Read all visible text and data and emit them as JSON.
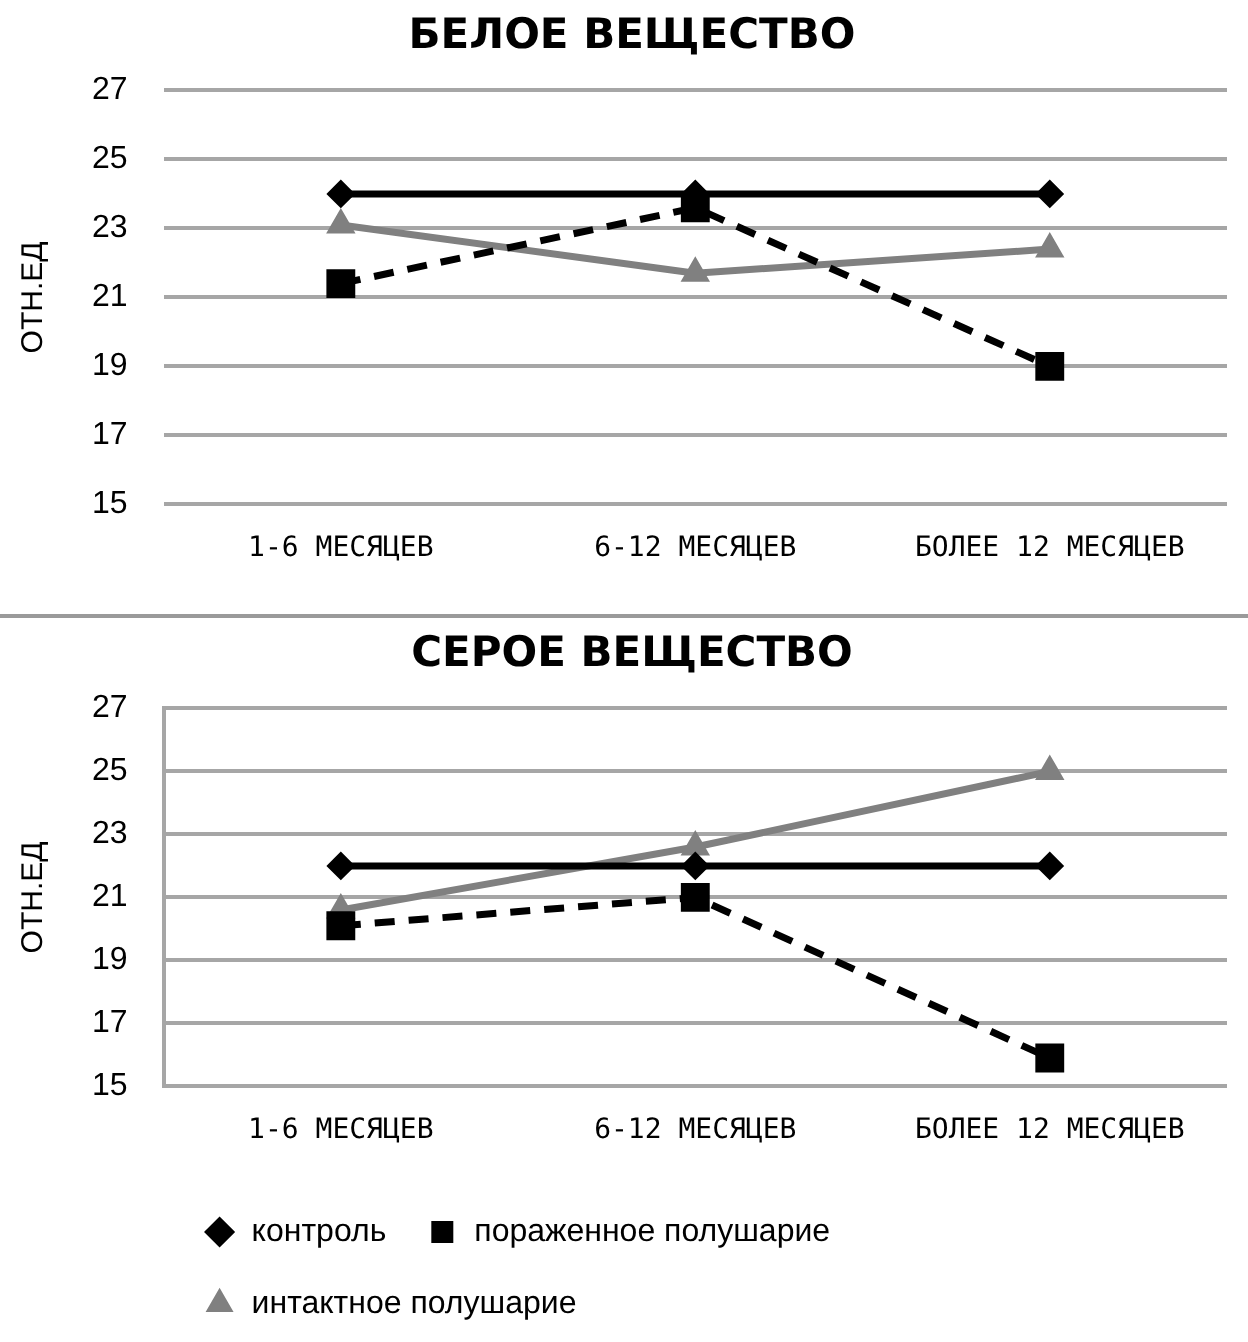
{
  "chart_data": [
    {
      "type": "line",
      "title": "БЕЛОЕ ВЕЩЕСТВО",
      "ylabel": "ОТН.ЕД",
      "categories": [
        "1-6 МЕСЯЦЕВ",
        "6-12 МЕСЯЦЕВ",
        "БОЛЕЕ 12 МЕСЯЦЕВ"
      ],
      "series": [
        {
          "color": "#000000",
          "marker": "diamond",
          "line_style": "solid",
          "values": [
            24,
            24,
            24
          ]
        },
        {
          "color": "#000000",
          "marker": "square",
          "line_style": "dashed",
          "values": [
            21.4,
            23.6,
            19.0
          ]
        },
        {
          "color": "#808080",
          "marker": "triangle",
          "line_style": "solid",
          "values": [
            23.1,
            21.7,
            22.4
          ]
        }
      ],
      "ylim": [
        15,
        27
      ],
      "yticks": [
        15,
        17,
        19,
        21,
        23,
        25,
        27
      ],
      "grid": "y",
      "legend": false
    },
    {
      "type": "line",
      "title": "СЕРОЕ ВЕЩЕСТВО",
      "ylabel": "ОТН.ЕД",
      "categories": [
        "1-6 МЕСЯЦЕВ",
        "6-12 МЕСЯЦЕВ",
        "БОЛЕЕ 12 МЕСЯЦЕВ"
      ],
      "series": [
        {
          "name": "контроль",
          "color": "#000000",
          "marker": "diamond",
          "line_style": "solid",
          "values": [
            22,
            22,
            22
          ]
        },
        {
          "name": "пораженное полушарие",
          "color": "#000000",
          "marker": "square",
          "line_style": "dashed",
          "values": [
            20.1,
            21.0,
            15.9
          ]
        },
        {
          "name": "интактное полушарие",
          "color": "#808080",
          "marker": "triangle",
          "line_style": "solid",
          "values": [
            20.6,
            22.6,
            25.0
          ]
        }
      ],
      "ylim": [
        15,
        27
      ],
      "yticks": [
        15,
        17,
        19,
        21,
        23,
        25,
        27
      ],
      "grid": "y",
      "legend": "bottom"
    }
  ]
}
